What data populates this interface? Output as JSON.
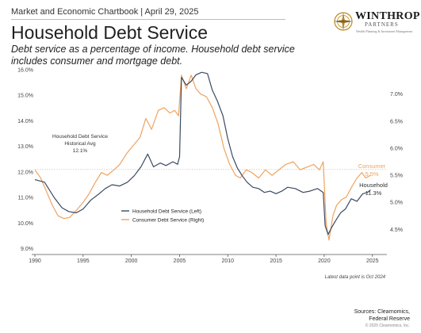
{
  "header": {
    "breadcrumb": "Market and Economic Chartbook | April 29, 2025",
    "title": "Household Debt Service",
    "subtitle": "Debt service as a percentage of income. Household debt service includes consumer and mortgage debt."
  },
  "logo": {
    "name": "WINTHROP",
    "sub": "PARTNERS",
    "tagline": "Wealth Planning & Investment Management"
  },
  "colors": {
    "household": "#3b4a63",
    "consumer": "#f0a35e",
    "avg_line": "#cfcfcf",
    "axis": "#555555"
  },
  "footer": {
    "note": "Latest data point is Oct 2024",
    "sources_line1": "Sources: Clearnomics,",
    "sources_line2": "Federal Reserve",
    "copyright": "© 2025 Clearnomics, Inc."
  },
  "chart_data": {
    "type": "line",
    "x_ticks": [
      1990,
      1995,
      2000,
      2005,
      2010,
      2015,
      2020,
      2025
    ],
    "x_range": [
      1990,
      2026.5
    ],
    "y_left": {
      "range": [
        8.8,
        16.0
      ],
      "ticks": [
        "9.0%",
        "10.0%",
        "11.0%",
        "12.0%",
        "13.0%",
        "14.0%",
        "15.0%",
        "16.0%"
      ],
      "tick_values": [
        9,
        10,
        11,
        12,
        13,
        14,
        15,
        16
      ]
    },
    "y_right": {
      "range": [
        4.05,
        7.45
      ],
      "ticks": [
        "4.5%",
        "5.0%",
        "5.5%",
        "6.0%",
        "6.5%",
        "7.0%"
      ],
      "tick_values": [
        4.5,
        5.0,
        5.5,
        6.0,
        6.5,
        7.0
      ]
    },
    "average": {
      "value": 12.1,
      "label_line1": "Household Debt Service",
      "label_line2": "Historical Avg",
      "label_value": "12.1%"
    },
    "legend": {
      "position": "bottom-left",
      "items": [
        "Household Debt Service (Left)",
        "Consumer Debt Service (Right)"
      ]
    },
    "grid": false,
    "series": [
      {
        "name": "Household Debt Service (Left)",
        "axis": "left",
        "end_label": "Household",
        "end_value": "11.3%",
        "points": [
          [
            1990.0,
            11.7
          ],
          [
            1991.0,
            11.6
          ],
          [
            1992.0,
            11.0
          ],
          [
            1992.8,
            10.6
          ],
          [
            1993.5,
            10.45
          ],
          [
            1994.3,
            10.4
          ],
          [
            1995.0,
            10.55
          ],
          [
            1995.8,
            10.9
          ],
          [
            1996.5,
            11.1
          ],
          [
            1997.3,
            11.35
          ],
          [
            1998.0,
            11.5
          ],
          [
            1998.8,
            11.45
          ],
          [
            1999.6,
            11.6
          ],
          [
            2000.3,
            11.85
          ],
          [
            2001.0,
            12.2
          ],
          [
            2001.7,
            12.7
          ],
          [
            2002.3,
            12.2
          ],
          [
            2003.0,
            12.35
          ],
          [
            2003.6,
            12.25
          ],
          [
            2004.3,
            12.4
          ],
          [
            2004.8,
            12.3
          ],
          [
            2005.0,
            12.6
          ],
          [
            2005.2,
            15.7
          ],
          [
            2005.7,
            15.4
          ],
          [
            2006.2,
            15.55
          ],
          [
            2006.7,
            15.8
          ],
          [
            2007.3,
            15.9
          ],
          [
            2007.9,
            15.85
          ],
          [
            2008.4,
            15.2
          ],
          [
            2008.9,
            14.8
          ],
          [
            2009.5,
            14.2
          ],
          [
            2010.0,
            13.3
          ],
          [
            2010.5,
            12.6
          ],
          [
            2011.0,
            12.15
          ],
          [
            2011.5,
            11.85
          ],
          [
            2012.0,
            11.6
          ],
          [
            2012.6,
            11.4
          ],
          [
            2013.2,
            11.35
          ],
          [
            2013.8,
            11.2
          ],
          [
            2014.4,
            11.25
          ],
          [
            2015.0,
            11.15
          ],
          [
            2015.6,
            11.25
          ],
          [
            2016.2,
            11.4
          ],
          [
            2017.0,
            11.35
          ],
          [
            2017.8,
            11.2
          ],
          [
            2018.5,
            11.25
          ],
          [
            2019.3,
            11.35
          ],
          [
            2019.9,
            11.2
          ],
          [
            2020.1,
            9.9
          ],
          [
            2020.4,
            9.55
          ],
          [
            2020.8,
            9.85
          ],
          [
            2021.2,
            10.1
          ],
          [
            2021.7,
            10.4
          ],
          [
            2022.2,
            10.55
          ],
          [
            2022.8,
            10.95
          ],
          [
            2023.4,
            10.85
          ],
          [
            2024.0,
            11.15
          ],
          [
            2024.5,
            11.2
          ],
          [
            2024.8,
            11.3
          ]
        ]
      },
      {
        "name": "Consumer Debt Service (Right)",
        "axis": "right",
        "end_label": "Consumer",
        "end_value": "5.5%",
        "points": [
          [
            1990.0,
            5.6
          ],
          [
            1990.6,
            5.45
          ],
          [
            1991.2,
            5.2
          ],
          [
            1991.8,
            4.95
          ],
          [
            1992.4,
            4.75
          ],
          [
            1993.0,
            4.7
          ],
          [
            1993.6,
            4.72
          ],
          [
            1994.3,
            4.85
          ],
          [
            1995.0,
            5.0
          ],
          [
            1995.6,
            5.15
          ],
          [
            1996.2,
            5.35
          ],
          [
            1996.9,
            5.55
          ],
          [
            1997.5,
            5.5
          ],
          [
            1998.2,
            5.6
          ],
          [
            1998.8,
            5.7
          ],
          [
            1999.5,
            5.9
          ],
          [
            2000.2,
            6.05
          ],
          [
            2000.9,
            6.2
          ],
          [
            2001.5,
            6.55
          ],
          [
            2002.1,
            6.35
          ],
          [
            2002.8,
            6.7
          ],
          [
            2003.4,
            6.75
          ],
          [
            2004.0,
            6.65
          ],
          [
            2004.5,
            6.7
          ],
          [
            2004.9,
            6.6
          ],
          [
            2005.2,
            7.35
          ],
          [
            2005.7,
            7.1
          ],
          [
            2006.2,
            7.35
          ],
          [
            2006.7,
            7.1
          ],
          [
            2007.2,
            7.0
          ],
          [
            2007.8,
            6.95
          ],
          [
            2008.4,
            6.75
          ],
          [
            2009.0,
            6.45
          ],
          [
            2009.6,
            6.0
          ],
          [
            2010.2,
            5.7
          ],
          [
            2010.8,
            5.5
          ],
          [
            2011.3,
            5.45
          ],
          [
            2011.9,
            5.6
          ],
          [
            2012.5,
            5.55
          ],
          [
            2013.2,
            5.45
          ],
          [
            2013.9,
            5.6
          ],
          [
            2014.6,
            5.5
          ],
          [
            2015.3,
            5.6
          ],
          [
            2016.0,
            5.7
          ],
          [
            2016.8,
            5.75
          ],
          [
            2017.5,
            5.6
          ],
          [
            2018.2,
            5.65
          ],
          [
            2018.9,
            5.7
          ],
          [
            2019.5,
            5.6
          ],
          [
            2019.9,
            5.75
          ],
          [
            2020.2,
            4.6
          ],
          [
            2020.5,
            4.3
          ],
          [
            2020.9,
            4.75
          ],
          [
            2021.3,
            4.95
          ],
          [
            2021.8,
            5.05
          ],
          [
            2022.3,
            5.1
          ],
          [
            2022.9,
            5.3
          ],
          [
            2023.4,
            5.45
          ],
          [
            2023.9,
            5.55
          ],
          [
            2024.3,
            5.45
          ],
          [
            2024.8,
            5.5
          ]
        ]
      }
    ]
  }
}
